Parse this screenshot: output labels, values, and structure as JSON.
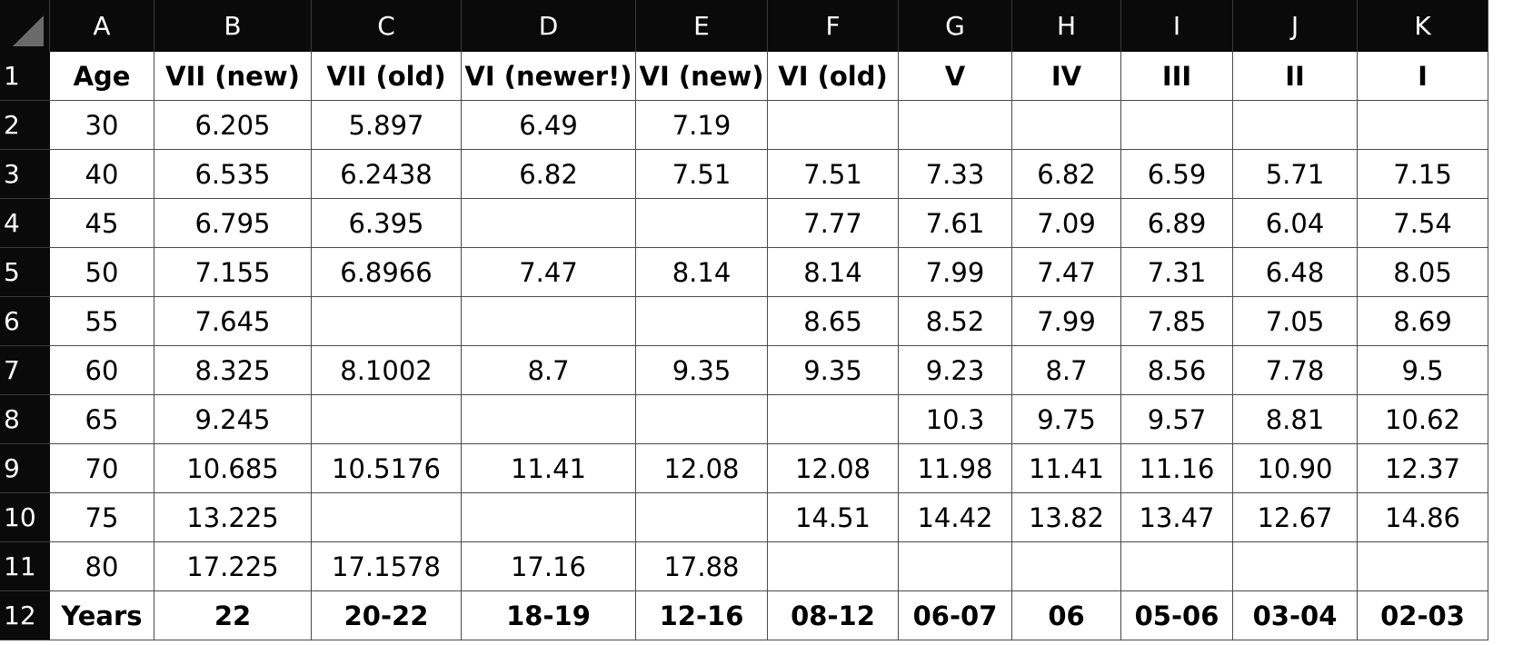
{
  "columns": [
    "A",
    "B",
    "C",
    "D",
    "E",
    "F",
    "G",
    "H",
    "I",
    "J",
    "K"
  ],
  "rows": [
    [
      "Age",
      "VII (new)",
      "VII (old)",
      "VI (newer!)",
      "VI (new)",
      "VI (old)",
      "V",
      "IV",
      "III",
      "II",
      "I"
    ],
    [
      "30",
      "6.205",
      "5.897",
      "6.49",
      "7.19",
      "",
      "",
      "",
      "",
      "",
      ""
    ],
    [
      "40",
      "6.535",
      "6.2438",
      "6.82",
      "7.51",
      "7.51",
      "7.33",
      "6.82",
      "6.59",
      "5.71",
      "7.15"
    ],
    [
      "45",
      "6.795",
      "6.395",
      "",
      "",
      "7.77",
      "7.61",
      "7.09",
      "6.89",
      "6.04",
      "7.54"
    ],
    [
      "50",
      "7.155",
      "6.8966",
      "7.47",
      "8.14",
      "8.14",
      "7.99",
      "7.47",
      "7.31",
      "6.48",
      "8.05"
    ],
    [
      "55",
      "7.645",
      "",
      "",
      "",
      "8.65",
      "8.52",
      "7.99",
      "7.85",
      "7.05",
      "8.69"
    ],
    [
      "60",
      "8.325",
      "8.1002",
      "8.7",
      "9.35",
      "9.35",
      "9.23",
      "8.7",
      "8.56",
      "7.78",
      "9.5"
    ],
    [
      "65",
      "9.245",
      "",
      "",
      "",
      "",
      "10.3",
      "9.75",
      "9.57",
      "8.81",
      "10.62"
    ],
    [
      "70",
      "10.685",
      "10.5176",
      "11.41",
      "12.08",
      "12.08",
      "11.98",
      "11.41",
      "11.16",
      "10.90",
      "12.37"
    ],
    [
      "75",
      "13.225",
      "",
      "",
      "",
      "14.51",
      "14.42",
      "13.82",
      "13.47",
      "12.67",
      "14.86"
    ],
    [
      "80",
      "17.225",
      "17.1578",
      "17.16",
      "17.88",
      "",
      "",
      "",
      "",
      "",
      ""
    ],
    [
      "Years",
      "22",
      "20-22",
      "18-19",
      "12-16",
      "08-12",
      "06-07",
      "06",
      "05-06",
      "03-04",
      "02-03"
    ]
  ],
  "row_numbers": [
    "1",
    "2",
    "3",
    "4",
    "5",
    "6",
    "7",
    "8",
    "9",
    "10",
    "11",
    "12"
  ]
}
